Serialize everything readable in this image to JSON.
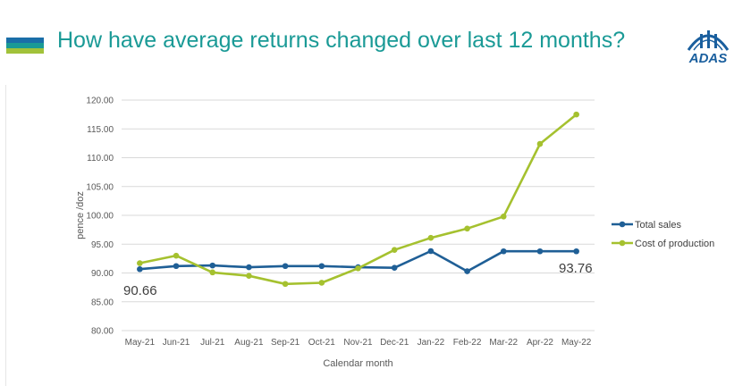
{
  "header": {
    "title": "How have average returns changed over last 12 months?",
    "logo_text": "ADAS",
    "accent_bars": [
      "#1a6ea8",
      "#1a9a96",
      "#a2c23a"
    ]
  },
  "colors": {
    "title": "#1a9a96",
    "total_sales": "#1f5f96",
    "cost_of_production": "#a5c12f",
    "grid": "#d9d9d9"
  },
  "chart_data": {
    "type": "line",
    "title": "",
    "xlabel": "Calendar month",
    "ylabel": "pence /doz",
    "ylim": [
      80,
      120
    ],
    "yticks": [
      "80.00",
      "85.00",
      "90.00",
      "95.00",
      "100.00",
      "105.00",
      "110.00",
      "115.00",
      "120.00"
    ],
    "grid": true,
    "legend_position": "right",
    "categories": [
      "May-21",
      "Jun-21",
      "Jul-21",
      "Aug-21",
      "Sep-21",
      "Oct-21",
      "Nov-21",
      "Dec-21",
      "Jan-22",
      "Feb-22",
      "Mar-22",
      "Apr-22",
      "May-22"
    ],
    "series": [
      {
        "name": "Total sales",
        "values": [
          90.66,
          91.2,
          91.3,
          91.0,
          91.2,
          91.2,
          91.0,
          90.9,
          93.8,
          90.3,
          93.76,
          93.76,
          93.76
        ]
      },
      {
        "name": "Cost of production",
        "values": [
          91.7,
          93.0,
          90.1,
          89.5,
          88.1,
          88.3,
          90.8,
          94.0,
          96.1,
          97.7,
          99.8,
          112.4,
          117.5
        ]
      }
    ],
    "annotations": [
      "90.66",
      "93.76"
    ]
  }
}
